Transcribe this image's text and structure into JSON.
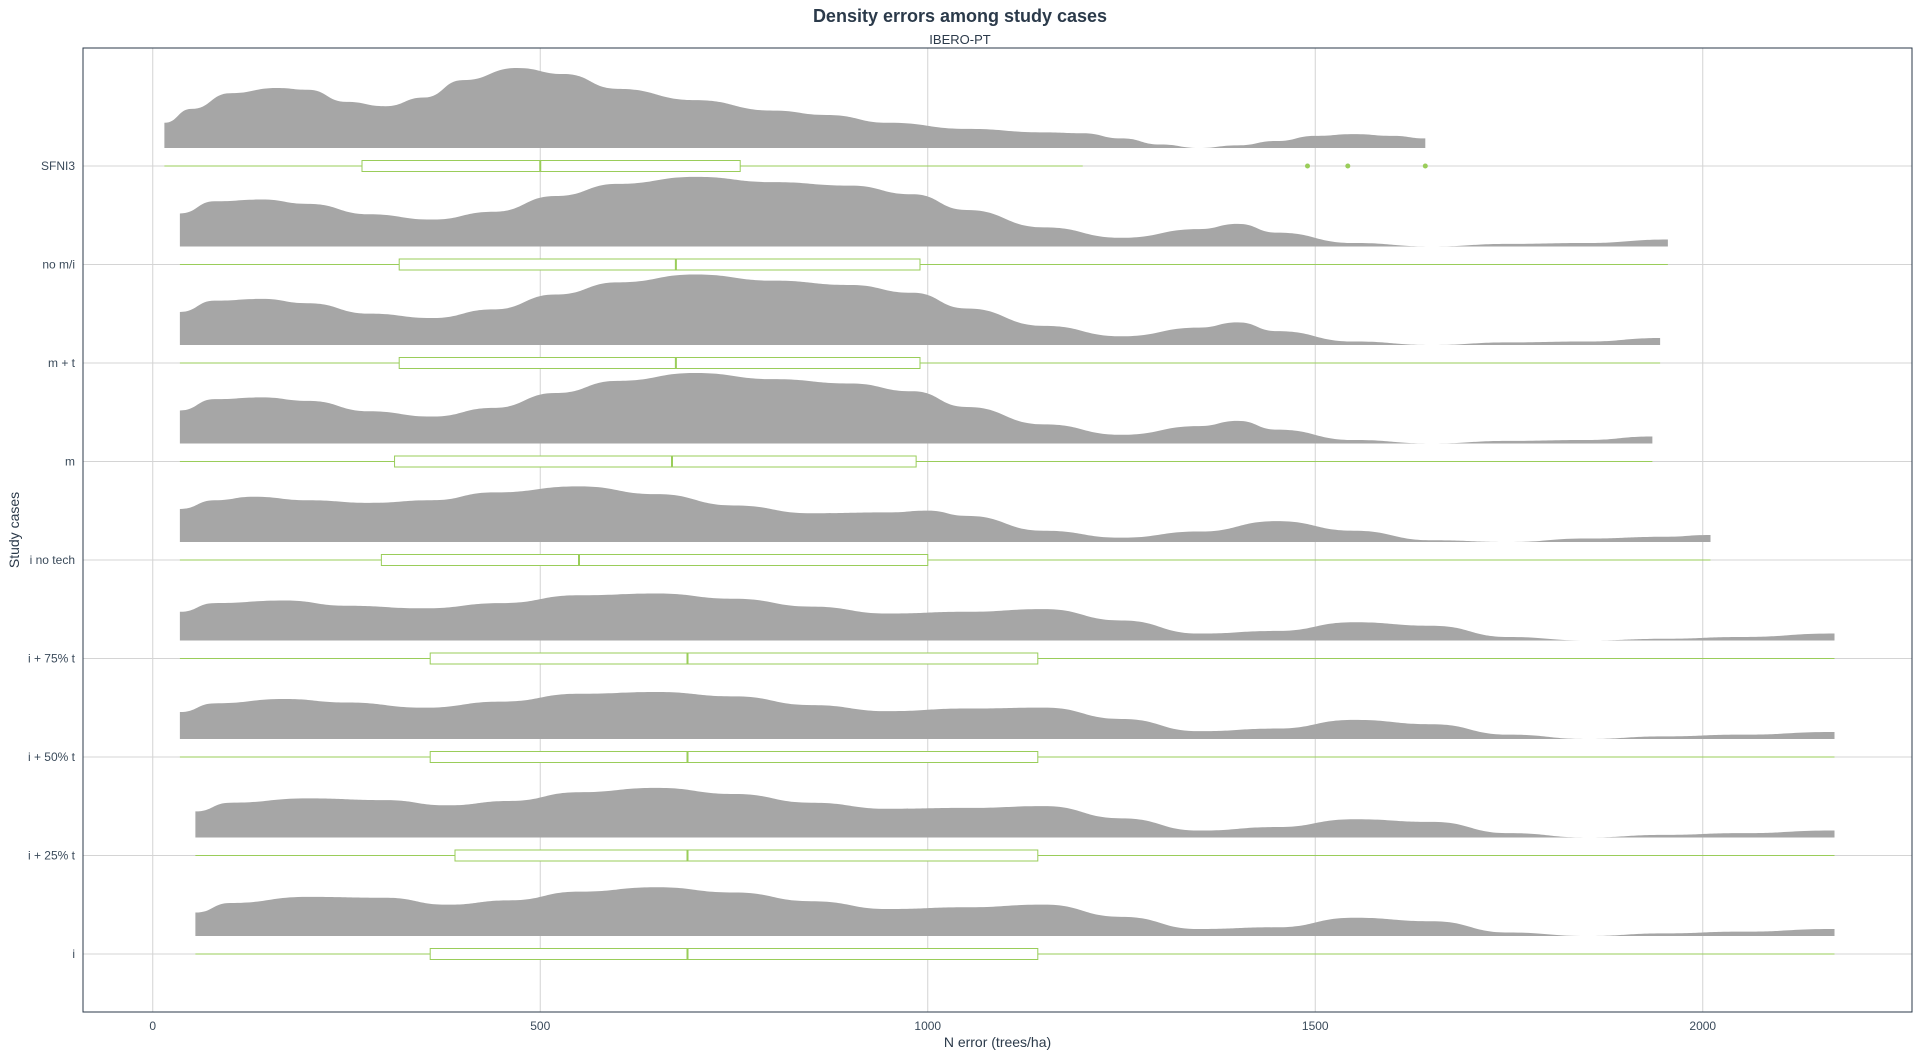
{
  "chart_data": {
    "type": "ridgeline",
    "title": "Density errors among study cases",
    "subtitle": "IBERO-PT",
    "xlabel": "N error (trees/ha)",
    "ylabel": "Study cases",
    "xlim": [
      -90,
      2270
    ],
    "x_ticks": [
      0,
      500,
      1000,
      1500,
      2000
    ],
    "grid": true,
    "colors": {
      "density": "#a6a6a6",
      "box": "#9acd5a",
      "grid": "#d4d4d4",
      "frame": "#2b3a4a"
    },
    "categories": [
      "SFNI3",
      "no m/i",
      "m + t",
      "m",
      "i no tech",
      "i + 75% t",
      "i + 50% t",
      "i + 25% t",
      "i"
    ],
    "series": [
      {
        "name": "SFNI3",
        "box": {
          "min": 15,
          "q1": 270,
          "median": 500,
          "q3": 758,
          "max": 1200
        },
        "outliers": [
          1490,
          1542,
          1642
        ],
        "density": {
          "x": [
            15,
            50,
            100,
            160,
            200,
            250,
            300,
            350,
            400,
            470,
            530,
            600,
            700,
            800,
            870,
            950,
            1050,
            1150,
            1200,
            1250,
            1300,
            1350,
            1400,
            1450,
            1500,
            1550,
            1600,
            1642
          ],
          "y": [
            0.29,
            0.45,
            0.63,
            0.69,
            0.67,
            0.53,
            0.48,
            0.58,
            0.78,
            0.92,
            0.85,
            0.68,
            0.55,
            0.43,
            0.38,
            0.29,
            0.22,
            0.18,
            0.17,
            0.11,
            0.04,
            0.0,
            0.03,
            0.08,
            0.14,
            0.16,
            0.14,
            0.11
          ]
        }
      },
      {
        "name": "no m/i",
        "box": {
          "min": 35,
          "q1": 318,
          "median": 675,
          "q3": 990,
          "max": 1955
        },
        "outliers": [],
        "density": {
          "x": [
            35,
            80,
            140,
            200,
            280,
            360,
            440,
            520,
            600,
            700,
            800,
            900,
            980,
            1050,
            1150,
            1250,
            1350,
            1400,
            1450,
            1550,
            1650,
            1750,
            1850,
            1955
          ],
          "y": [
            0.38,
            0.52,
            0.54,
            0.49,
            0.37,
            0.31,
            0.4,
            0.58,
            0.72,
            0.8,
            0.74,
            0.7,
            0.6,
            0.42,
            0.22,
            0.1,
            0.2,
            0.26,
            0.16,
            0.04,
            0.0,
            0.03,
            0.04,
            0.08
          ]
        }
      },
      {
        "name": "m + t",
        "box": {
          "min": 35,
          "q1": 318,
          "median": 675,
          "q3": 990,
          "max": 1945
        },
        "outliers": [],
        "density": {
          "x": [
            35,
            80,
            140,
            200,
            280,
            360,
            440,
            520,
            600,
            700,
            800,
            900,
            980,
            1050,
            1150,
            1250,
            1350,
            1400,
            1450,
            1550,
            1650,
            1750,
            1850,
            1945
          ],
          "y": [
            0.38,
            0.51,
            0.53,
            0.48,
            0.36,
            0.31,
            0.41,
            0.58,
            0.72,
            0.81,
            0.74,
            0.69,
            0.6,
            0.42,
            0.22,
            0.1,
            0.2,
            0.26,
            0.16,
            0.04,
            0.0,
            0.03,
            0.04,
            0.08
          ]
        }
      },
      {
        "name": "m",
        "box": {
          "min": 35,
          "q1": 312,
          "median": 670,
          "q3": 985,
          "max": 1935
        },
        "outliers": [],
        "density": {
          "x": [
            35,
            80,
            140,
            200,
            280,
            360,
            440,
            520,
            600,
            700,
            800,
            900,
            980,
            1050,
            1150,
            1250,
            1350,
            1400,
            1450,
            1550,
            1650,
            1750,
            1850,
            1935
          ],
          "y": [
            0.38,
            0.51,
            0.53,
            0.49,
            0.37,
            0.31,
            0.41,
            0.58,
            0.72,
            0.81,
            0.74,
            0.69,
            0.6,
            0.42,
            0.22,
            0.1,
            0.2,
            0.26,
            0.16,
            0.04,
            0.0,
            0.03,
            0.04,
            0.08
          ]
        }
      },
      {
        "name": "i no tech",
        "box": {
          "min": 35,
          "q1": 295,
          "median": 550,
          "q3": 1000,
          "max": 2010
        },
        "outliers": [],
        "density": {
          "x": [
            35,
            80,
            130,
            200,
            280,
            360,
            440,
            550,
            650,
            750,
            850,
            950,
            1000,
            1050,
            1150,
            1250,
            1350,
            1450,
            1550,
            1650,
            1750,
            1850,
            1950,
            2010
          ],
          "y": [
            0.38,
            0.48,
            0.52,
            0.48,
            0.45,
            0.48,
            0.57,
            0.64,
            0.55,
            0.42,
            0.33,
            0.34,
            0.36,
            0.3,
            0.13,
            0.05,
            0.12,
            0.24,
            0.13,
            0.02,
            0.0,
            0.04,
            0.06,
            0.08
          ]
        }
      },
      {
        "name": "i + 75% t",
        "box": {
          "min": 35,
          "q1": 358,
          "median": 690,
          "q3": 1142,
          "max": 2170
        },
        "outliers": [],
        "density": {
          "x": [
            35,
            80,
            170,
            250,
            350,
            450,
            550,
            650,
            750,
            850,
            950,
            1050,
            1150,
            1250,
            1350,
            1450,
            1550,
            1650,
            1750,
            1850,
            1950,
            2050,
            2170
          ],
          "y": [
            0.33,
            0.43,
            0.46,
            0.4,
            0.37,
            0.43,
            0.52,
            0.54,
            0.48,
            0.39,
            0.31,
            0.33,
            0.36,
            0.23,
            0.08,
            0.11,
            0.21,
            0.17,
            0.04,
            0.0,
            0.02,
            0.04,
            0.08
          ]
        }
      },
      {
        "name": "i + 50% t",
        "box": {
          "min": 35,
          "q1": 358,
          "median": 690,
          "q3": 1142,
          "max": 2170
        },
        "outliers": [],
        "density": {
          "x": [
            35,
            80,
            170,
            250,
            350,
            450,
            550,
            650,
            750,
            850,
            950,
            1050,
            1150,
            1250,
            1350,
            1450,
            1550,
            1650,
            1750,
            1850,
            1950,
            2050,
            2170
          ],
          "y": [
            0.31,
            0.41,
            0.46,
            0.42,
            0.36,
            0.43,
            0.52,
            0.54,
            0.49,
            0.39,
            0.32,
            0.35,
            0.36,
            0.23,
            0.09,
            0.12,
            0.22,
            0.17,
            0.05,
            0.0,
            0.03,
            0.05,
            0.08
          ]
        }
      },
      {
        "name": "i + 25% t",
        "box": {
          "min": 55,
          "q1": 390,
          "median": 690,
          "q3": 1142,
          "max": 2170
        },
        "outliers": [],
        "density": {
          "x": [
            55,
            100,
            200,
            300,
            380,
            460,
            550,
            650,
            750,
            850,
            950,
            1050,
            1150,
            1250,
            1350,
            1450,
            1550,
            1650,
            1750,
            1850,
            1950,
            2050,
            2170
          ],
          "y": [
            0.3,
            0.4,
            0.45,
            0.43,
            0.37,
            0.42,
            0.52,
            0.57,
            0.5,
            0.4,
            0.33,
            0.34,
            0.36,
            0.22,
            0.08,
            0.12,
            0.21,
            0.18,
            0.05,
            0.0,
            0.03,
            0.05,
            0.08
          ]
        }
      },
      {
        "name": "i",
        "box": {
          "min": 55,
          "q1": 358,
          "median": 690,
          "q3": 1142,
          "max": 2170
        },
        "outliers": [],
        "density": {
          "x": [
            55,
            100,
            200,
            300,
            380,
            460,
            550,
            650,
            750,
            850,
            950,
            1050,
            1150,
            1250,
            1350,
            1450,
            1550,
            1650,
            1750,
            1850,
            1950,
            2050,
            2170
          ],
          "y": [
            0.27,
            0.38,
            0.45,
            0.44,
            0.36,
            0.41,
            0.51,
            0.56,
            0.5,
            0.4,
            0.31,
            0.33,
            0.36,
            0.22,
            0.08,
            0.1,
            0.21,
            0.17,
            0.04,
            0.0,
            0.03,
            0.05,
            0.08
          ]
        }
      }
    ]
  }
}
